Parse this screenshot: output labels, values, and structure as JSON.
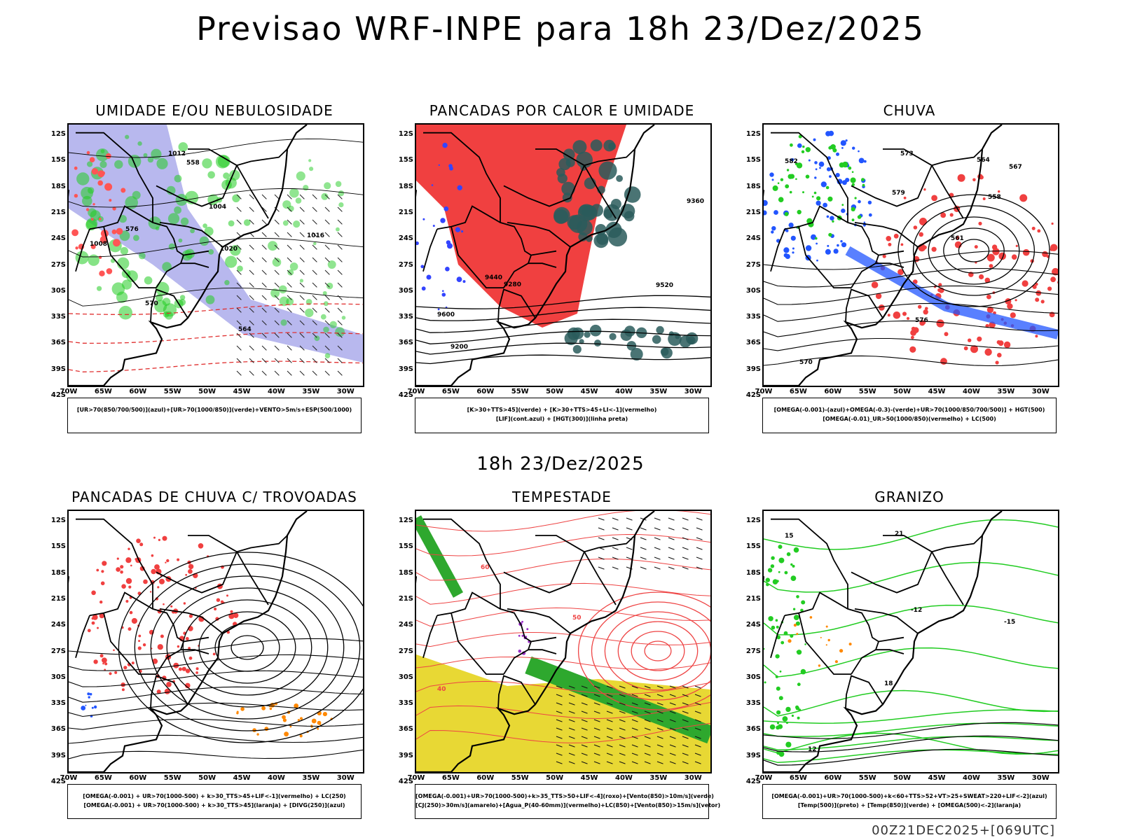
{
  "header": {
    "title": "Previsao WRF-INPE  para 18h 23/Dez/2025",
    "mid_date": "18h 23/Dez/2025",
    "stamp": "00Z21DEC2025+[069UTC]"
  },
  "axes": {
    "lat_labels": [
      "12S",
      "15S",
      "18S",
      "21S",
      "24S",
      "27S",
      "30S",
      "33S",
      "36S",
      "39S",
      "42S"
    ],
    "lon_labels": [
      "70W",
      "65W",
      "60W",
      "55W",
      "50W",
      "45W",
      "40W",
      "35W",
      "30W"
    ]
  },
  "panels": [
    {
      "title": "UMIDADE E/OU NEBULOSIDADE",
      "legend": [
        "[UR>70(850/700/500)](azul)+[UR>70(1000/850)](verde)+VENTO>5m/s+ESP(500/1000)"
      ],
      "contour_labels": [
        "1008",
        "1012",
        "1016",
        "1020",
        "1004",
        "570",
        "576",
        "564",
        "558"
      ]
    },
    {
      "title": "PANCADAS POR CALOR E UMIDADE",
      "legend": [
        "[K>30+TTS>45](verde)  +  [K>30+TTS>45+LI<-1](vermelho)",
        "[LIF](cont.azul)  +  [HGT(300)](linha preta)"
      ],
      "contour_labels": [
        "9600",
        "9520",
        "9440",
        "9360",
        "9280",
        "9200"
      ]
    },
    {
      "title": "CHUVA",
      "legend": [
        "[OMEGA(-0.001)-(azul)+OMEGA(-0.3)-(verde)+UR>70(1000/850/700/500)]  +  HGT(500)",
        "[OMEGA(-0.01)_UR>50(1000/850)(vermelho)  +  LC(500)"
      ],
      "contour_labels": [
        "582",
        "579",
        "576",
        "573",
        "570",
        "567",
        "564",
        "561",
        "558"
      ]
    },
    {
      "title": "PANCADAS DE CHUVA C/ TROVOADAS",
      "legend": [
        "[OMEGA(-0.001)  +  UR>70(1000-500)  +  k>30_TTS>45+LIF<-1](vermelho)  +  LC(250)",
        "[OMEGA(-0.001)  +  UR>70(1000-500)  +  k>30_TTS>45](laranja)  +  [DIVG(250)](azul)"
      ],
      "contour_labels": []
    },
    {
      "title": "TEMPESTADE",
      "legend": [
        "[OMEGA(-0.001)+UR>70(1000-500)+k>35_TTS>50+LIF<-4](roxo)+[Vento(850)>10m/s](verde)",
        "[CJ(250)>30m/s](amarelo)+[Agua_P(40-60mm)](vermelho)+LC(850)+[Vento(850)>15m/s](vetor)"
      ],
      "contour_labels": [
        "40",
        "50",
        "60"
      ]
    },
    {
      "title": "GRANIZO",
      "legend": [
        "[OMEGA(-0.001)+UR>70(1000-500)+k<60+TTS>52+VT>25+SWEAT>220+LIF<-2](azul)",
        "[Temp(500)](preto)  +  [Temp(850)](verde)  +  [OMEGA(500)<-2](laranja)"
      ],
      "contour_labels": [
        "15",
        "12",
        "-12",
        "-15",
        "21",
        "18"
      ]
    }
  ]
}
